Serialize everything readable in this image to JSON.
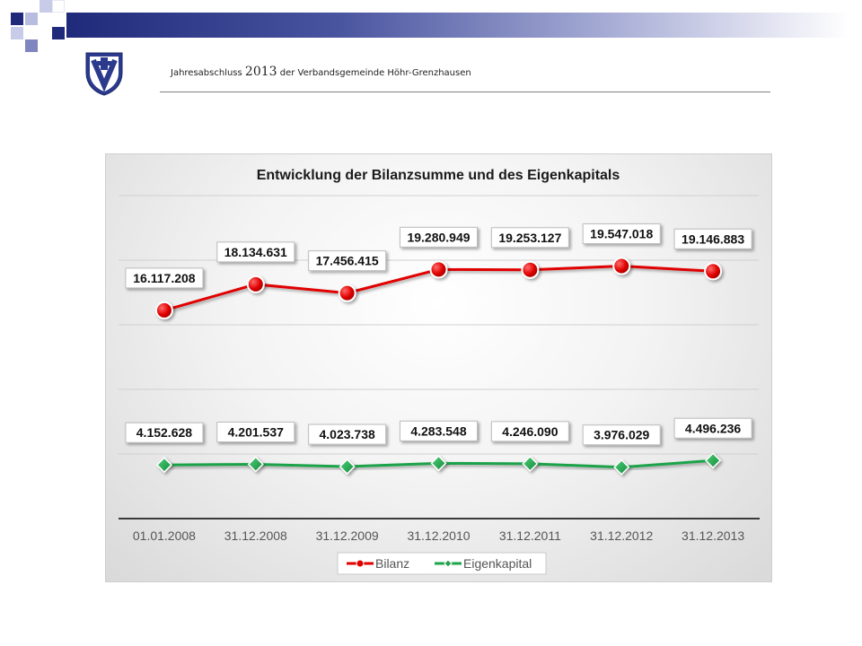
{
  "header": {
    "title_pre": "Jahresabschluss ",
    "title_year": "2013",
    "title_post": " der Verbandsgemeinde Höhr-Grenzhausen"
  },
  "logo": {
    "icon": "coat-of-arms-icon"
  },
  "chart_data": {
    "type": "line",
    "title": "Entwicklung der Bilanzsumme und des Eigenkapitals",
    "categories": [
      "01.01.2008",
      "31.12.2008",
      "31.12.2009",
      "31.12.2010",
      "31.12.2011",
      "31.12.2012",
      "31.12.2013"
    ],
    "series": [
      {
        "name": "Bilanz",
        "color": "#e00000",
        "marker": "circle",
        "values": [
          16117208,
          18134631,
          17456415,
          19280949,
          19253127,
          19547018,
          19146883
        ],
        "labels": [
          "16.117.208",
          "18.134.631",
          "17.456.415",
          "19.280.949",
          "19.253.127",
          "19.547.018",
          "19.146.883"
        ]
      },
      {
        "name": "Eigenkapital",
        "color": "#1ea34a",
        "marker": "diamond",
        "values": [
          4152628,
          4201537,
          4023738,
          4283548,
          4246090,
          3976029,
          4496236
        ],
        "labels": [
          "4.152.628",
          "4.201.537",
          "4.023.738",
          "4.283.548",
          "4.246.090",
          "3.976.029",
          "4.496.236"
        ]
      }
    ],
    "ylim": [
      0,
      25000000
    ],
    "grid": true,
    "legend": "bottom"
  }
}
